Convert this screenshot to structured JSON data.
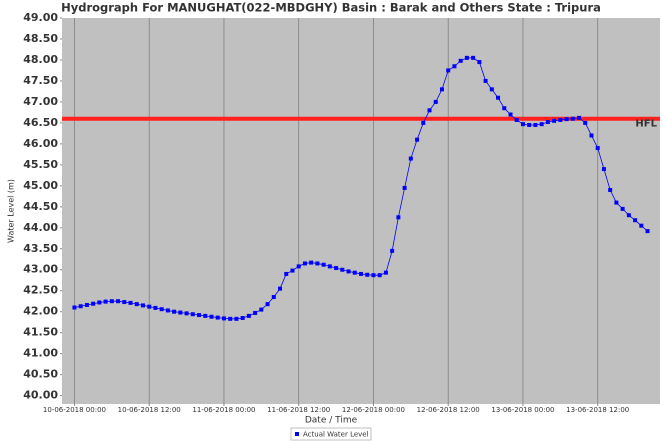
{
  "chart_data": {
    "type": "line",
    "title": "Hydrograph For MANUGHAT(022-MBDGHY) Basin : Barak and Others State : Tripura",
    "x_label": "Date / Time",
    "y_label": "Water Level (m)",
    "x": [
      "10-06-2018 00:00",
      "10-06-2018 01:00",
      "10-06-2018 02:00",
      "10-06-2018 03:00",
      "10-06-2018 04:00",
      "10-06-2018 05:00",
      "10-06-2018 06:00",
      "10-06-2018 07:00",
      "10-06-2018 08:00",
      "10-06-2018 09:00",
      "10-06-2018 10:00",
      "10-06-2018 11:00",
      "10-06-2018 12:00",
      "10-06-2018 13:00",
      "10-06-2018 14:00",
      "10-06-2018 15:00",
      "10-06-2018 16:00",
      "10-06-2018 17:00",
      "10-06-2018 18:00",
      "10-06-2018 19:00",
      "10-06-2018 20:00",
      "10-06-2018 21:00",
      "10-06-2018 22:00",
      "10-06-2018 23:00",
      "11-06-2018 00:00",
      "11-06-2018 01:00",
      "11-06-2018 02:00",
      "11-06-2018 03:00",
      "11-06-2018 04:00",
      "11-06-2018 05:00",
      "11-06-2018 06:00",
      "11-06-2018 07:00",
      "11-06-2018 08:00",
      "11-06-2018 09:00",
      "11-06-2018 10:00",
      "11-06-2018 11:00",
      "11-06-2018 12:00",
      "11-06-2018 13:00",
      "11-06-2018 14:00",
      "11-06-2018 15:00",
      "11-06-2018 16:00",
      "11-06-2018 17:00",
      "11-06-2018 18:00",
      "11-06-2018 19:00",
      "11-06-2018 20:00",
      "11-06-2018 21:00",
      "11-06-2018 22:00",
      "11-06-2018 23:00",
      "12-06-2018 00:00",
      "12-06-2018 01:00",
      "12-06-2018 02:00",
      "12-06-2018 03:00",
      "12-06-2018 04:00",
      "12-06-2018 05:00",
      "12-06-2018 06:00",
      "12-06-2018 07:00",
      "12-06-2018 08:00",
      "12-06-2018 09:00",
      "12-06-2018 10:00",
      "12-06-2018 11:00",
      "12-06-2018 12:00",
      "12-06-2018 13:00",
      "12-06-2018 14:00",
      "12-06-2018 15:00",
      "12-06-2018 16:00",
      "12-06-2018 17:00",
      "12-06-2018 18:00",
      "12-06-2018 19:00",
      "12-06-2018 20:00",
      "12-06-2018 21:00",
      "12-06-2018 22:00",
      "12-06-2018 23:00",
      "13-06-2018 00:00",
      "13-06-2018 01:00",
      "13-06-2018 02:00",
      "13-06-2018 03:00",
      "13-06-2018 04:00",
      "13-06-2018 05:00",
      "13-06-2018 06:00",
      "13-06-2018 07:00",
      "13-06-2018 08:00",
      "13-06-2018 09:00",
      "13-06-2018 10:00",
      "13-06-2018 11:00",
      "13-06-2018 12:00",
      "13-06-2018 13:00",
      "13-06-2018 14:00",
      "13-06-2018 15:00",
      "13-06-2018 16:00",
      "13-06-2018 17:00",
      "13-06-2018 18:00",
      "13-06-2018 19:00",
      "13-06-2018 20:00"
    ],
    "series": [
      {
        "name": "Actual Water Level",
        "color": "#0000ff",
        "values": [
          42.1,
          42.13,
          42.16,
          42.19,
          42.22,
          42.24,
          42.25,
          42.25,
          42.23,
          42.21,
          42.18,
          42.15,
          42.12,
          42.09,
          42.06,
          42.03,
          42.0,
          41.98,
          41.96,
          41.94,
          41.92,
          41.9,
          41.88,
          41.86,
          41.84,
          41.83,
          41.83,
          41.85,
          41.9,
          41.97,
          42.05,
          42.18,
          42.35,
          42.55,
          42.9,
          42.98,
          43.08,
          43.15,
          43.17,
          43.15,
          43.12,
          43.08,
          43.04,
          43.0,
          42.96,
          42.93,
          42.9,
          42.88,
          42.87,
          42.87,
          42.93,
          43.45,
          44.25,
          44.95,
          45.65,
          46.1,
          46.5,
          46.8,
          47.0,
          47.3,
          47.75,
          47.85,
          47.98,
          48.05,
          48.05,
          47.95,
          47.5,
          47.3,
          47.1,
          46.85,
          46.7,
          46.57,
          46.47,
          46.45,
          46.45,
          46.47,
          46.52,
          46.55,
          46.57,
          46.59,
          46.6,
          46.62,
          46.5,
          46.2,
          45.9,
          45.4,
          44.9,
          44.6,
          44.45,
          44.3,
          44.18,
          44.05,
          43.92
        ]
      }
    ],
    "hfl": {
      "value": 46.6,
      "label": "HFL",
      "color": "#ff2020"
    },
    "xlim": [
      "09-06-2018 22:00",
      "13-06-2018 22:00"
    ],
    "xticks": [
      "10-06-2018 00:00",
      "10-06-2018 12:00",
      "11-06-2018 00:00",
      "11-06-2018 12:00",
      "12-06-2018 00:00",
      "12-06-2018 12:00",
      "13-06-2018 00:00",
      "13-06-2018 12:00"
    ],
    "ylim": [
      39.8,
      49
    ],
    "yticks": [
      {
        "value": 40,
        "label": "40.00"
      },
      {
        "value": 40.5,
        "label": "40.50"
      },
      {
        "value": 41,
        "label": "41.00"
      },
      {
        "value": 41.5,
        "label": "41.50"
      },
      {
        "value": 42,
        "label": "42.00"
      },
      {
        "value": 42.5,
        "label": "42.50"
      },
      {
        "value": 43,
        "label": "43.00"
      },
      {
        "value": 43.5,
        "label": "43.50"
      },
      {
        "value": 44,
        "label": "44.00"
      },
      {
        "value": 44.5,
        "label": "44.50"
      },
      {
        "value": 45,
        "label": "45.00"
      },
      {
        "value": 45.5,
        "label": "45.50"
      },
      {
        "value": 46,
        "label": "46.00"
      },
      {
        "value": 46.5,
        "label": "46.50"
      },
      {
        "value": 47,
        "label": "47.00"
      },
      {
        "value": 47.5,
        "label": "47.50"
      },
      {
        "value": 48,
        "label": "48.00"
      },
      {
        "value": 48.5,
        "label": "48.50"
      },
      {
        "value": 49,
        "label": "49.00"
      }
    ],
    "grid": true,
    "legend": "bottom"
  }
}
